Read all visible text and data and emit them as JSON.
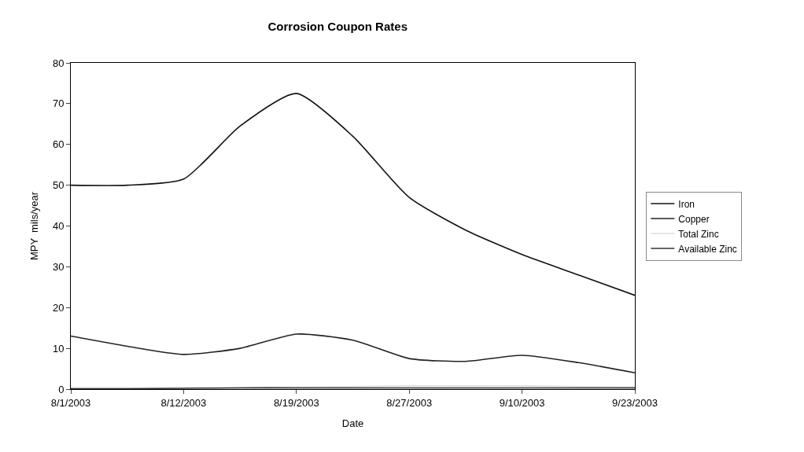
{
  "chart_data": {
    "type": "line",
    "title": "Corrosion Coupon Rates",
    "xlabel": "Date",
    "ylabel": "MPY  mils/year",
    "categories": [
      "8/1/2003",
      null,
      "8/12/2003",
      null,
      "8/19/2003",
      null,
      "8/27/2003",
      null,
      "9/10/2003",
      null,
      "9/23/2003"
    ],
    "series": [
      {
        "name": "Iron",
        "color": "#111111",
        "values": [
          50,
          50,
          51.5,
          64.5,
          72.5,
          62,
          47,
          39,
          33,
          28,
          23
        ]
      },
      {
        "name": "Copper",
        "color": "#222222",
        "values": [
          13,
          10.5,
          8.5,
          10,
          13.5,
          12,
          7.5,
          6.8,
          8.3,
          6.5,
          4
        ]
      },
      {
        "name": "Total Zinc",
        "color": "#dddddd",
        "values": [
          0.3,
          0.3,
          0.3,
          0.4,
          0.5,
          0.6,
          0.8,
          0.8,
          0.8,
          0.6,
          0.5
        ]
      },
      {
        "name": "Available Zinc",
        "color": "#333333",
        "values": [
          0.1,
          0.1,
          0.2,
          0.3,
          0.3,
          0.3,
          0.3,
          0.3,
          0.3,
          0.3,
          0.3
        ]
      }
    ],
    "ylim": [
      0,
      80
    ],
    "yticks": [
      0,
      10,
      20,
      30,
      40,
      50,
      60,
      70,
      80
    ],
    "legend": "right",
    "marker": "none",
    "line_style": "solid"
  }
}
